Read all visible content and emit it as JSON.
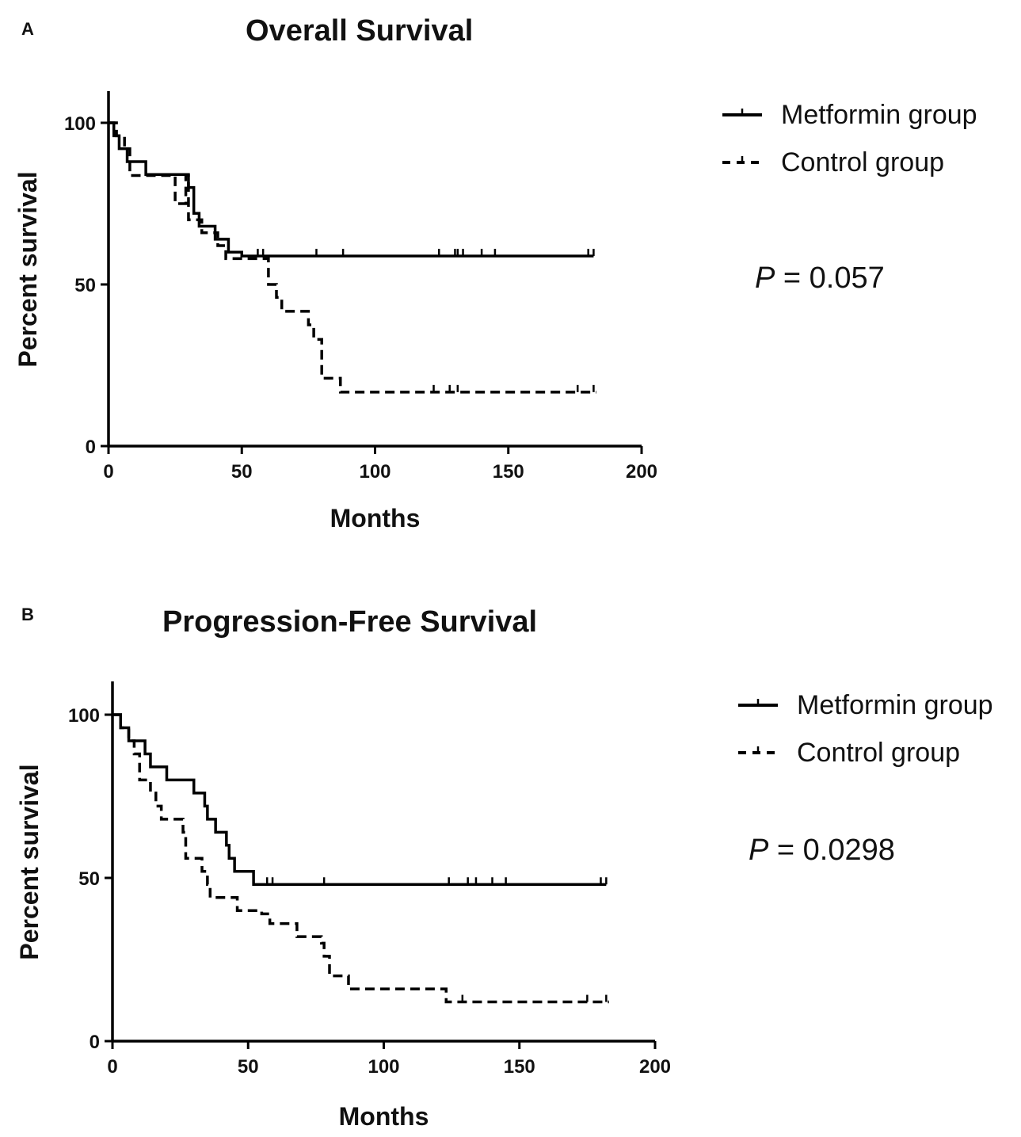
{
  "chart_data": [
    {
      "type": "line",
      "panel": "A",
      "title": "Overall Survival",
      "xlabel": "Months",
      "ylabel": "Percent survival",
      "xlim": [
        0,
        200
      ],
      "ylim": [
        0,
        100
      ],
      "xticks": [
        "0",
        "50",
        "100",
        "150",
        "200"
      ],
      "yticks": [
        "0",
        "50",
        "100"
      ],
      "grid": false,
      "legend_position": "top-right",
      "p_label": "P",
      "p_text": " = 0.057",
      "series": [
        {
          "name": "Metformin group",
          "style": "solid",
          "steps": [
            [
              0,
              100
            ],
            [
              2,
              96
            ],
            [
              4,
              92
            ],
            [
              7,
              88
            ],
            [
              14,
              84
            ],
            [
              30,
              80
            ],
            [
              32,
              72
            ],
            [
              34,
              68
            ],
            [
              40,
              64
            ],
            [
              45,
              60
            ],
            [
              50,
              58.8
            ],
            [
              182,
              58.8
            ]
          ],
          "censored": [
            56,
            58,
            78,
            88,
            124,
            130,
            131,
            133,
            140,
            145,
            180,
            182
          ]
        },
        {
          "name": "Control group",
          "style": "dashed",
          "steps": [
            [
              0,
              100
            ],
            [
              3,
              96
            ],
            [
              6,
              92
            ],
            [
              8,
              83.7
            ],
            [
              25,
              75
            ],
            [
              29,
              83.7
            ],
            [
              30,
              70
            ],
            [
              35,
              66
            ],
            [
              41,
              62
            ],
            [
              44,
              58
            ],
            [
              58,
              58
            ],
            [
              60,
              50
            ],
            [
              63,
              46
            ],
            [
              65,
              41.7
            ],
            [
              75,
              37.5
            ],
            [
              77,
              33
            ],
            [
              80,
              21
            ],
            [
              87,
              16.7
            ],
            [
              183,
              16.7
            ]
          ],
          "censored": [
            122,
            128,
            131,
            176,
            182
          ]
        }
      ]
    },
    {
      "type": "line",
      "panel": "B",
      "title": "Progression-Free Survival",
      "xlabel": "Months",
      "ylabel": "Percent survival",
      "xlim": [
        0,
        200
      ],
      "ylim": [
        0,
        100
      ],
      "xticks": [
        "0",
        "50",
        "100",
        "150",
        "200"
      ],
      "yticks": [
        "0",
        "50",
        "100"
      ],
      "grid": false,
      "legend_position": "top-right",
      "p_label": "P",
      "p_text": " = 0.0298",
      "series": [
        {
          "name": "Metformin group",
          "style": "solid",
          "steps": [
            [
              0,
              100
            ],
            [
              3,
              96
            ],
            [
              6,
              92
            ],
            [
              12,
              88
            ],
            [
              14,
              84
            ],
            [
              20,
              80
            ],
            [
              30,
              76
            ],
            [
              34,
              72
            ],
            [
              35,
              68
            ],
            [
              38,
              64
            ],
            [
              42,
              60
            ],
            [
              43,
              56
            ],
            [
              45,
              52
            ],
            [
              52,
              48
            ],
            [
              182,
              48
            ]
          ],
          "censored": [
            57,
            59,
            78,
            124,
            131,
            134,
            140,
            145,
            180,
            182
          ]
        },
        {
          "name": "Control group",
          "style": "dashed",
          "steps": [
            [
              0,
              100
            ],
            [
              3,
              96
            ],
            [
              6,
              92
            ],
            [
              8,
              88
            ],
            [
              10,
              80
            ],
            [
              14,
              76
            ],
            [
              16,
              72
            ],
            [
              18,
              68
            ],
            [
              26,
              64
            ],
            [
              27,
              56
            ],
            [
              33,
              52
            ],
            [
              35,
              48
            ],
            [
              36,
              44
            ],
            [
              46,
              40
            ],
            [
              55,
              39
            ],
            [
              58,
              36
            ],
            [
              68,
              32
            ],
            [
              77,
              30
            ],
            [
              78,
              26
            ],
            [
              80,
              20
            ],
            [
              87,
              16
            ],
            [
              123,
              12
            ],
            [
              183,
              12
            ]
          ],
          "censored": [
            129,
            175,
            182
          ]
        }
      ]
    }
  ]
}
